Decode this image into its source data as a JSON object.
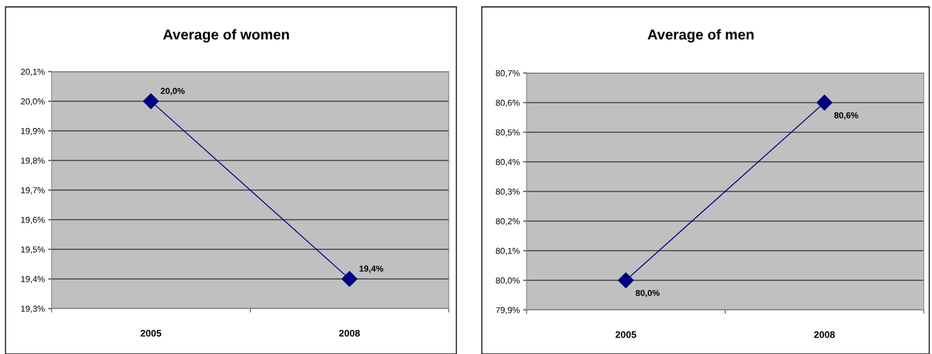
{
  "chart_data": [
    {
      "type": "line",
      "title": "Average of women",
      "categories": [
        "2005",
        "2008"
      ],
      "series": [
        {
          "color": "#000080",
          "values": [
            20.0,
            19.4
          ],
          "value_labels": [
            "20,0%",
            "19,4%"
          ]
        }
      ],
      "ylim": [
        19.3,
        20.1
      ],
      "yticks": [
        {
          "value": 19.3,
          "label": "19,3%"
        },
        {
          "value": 19.4,
          "label": "19,4%"
        },
        {
          "value": 19.5,
          "label": "19,5%"
        },
        {
          "value": 19.6,
          "label": "19,6%"
        },
        {
          "value": 19.7,
          "label": "19,7%"
        },
        {
          "value": 19.8,
          "label": "19,8%"
        },
        {
          "value": 19.9,
          "label": "19,9%"
        },
        {
          "value": 20.0,
          "label": "20,0%"
        },
        {
          "value": 20.1,
          "label": "20,1%"
        }
      ],
      "grid": "y",
      "marker": "diamond",
      "line_style": "solid",
      "legend": false
    },
    {
      "type": "line",
      "title": "Average of men",
      "categories": [
        "2005",
        "2008"
      ],
      "series": [
        {
          "color": "#000080",
          "values": [
            80.0,
            80.6
          ],
          "value_labels": [
            "80,0%",
            "80,6%"
          ]
        }
      ],
      "ylim": [
        79.9,
        80.7
      ],
      "yticks": [
        {
          "value": 79.9,
          "label": "79,9%"
        },
        {
          "value": 80.0,
          "label": "80,0%"
        },
        {
          "value": 80.1,
          "label": "80,1%"
        },
        {
          "value": 80.2,
          "label": "80,2%"
        },
        {
          "value": 80.3,
          "label": "80,3%"
        },
        {
          "value": 80.4,
          "label": "80,4%"
        },
        {
          "value": 80.5,
          "label": "80,5%"
        },
        {
          "value": 80.6,
          "label": "80,6%"
        },
        {
          "value": 80.7,
          "label": "80,7%"
        }
      ],
      "grid": "y",
      "marker": "diamond",
      "line_style": "solid",
      "legend": false
    }
  ]
}
